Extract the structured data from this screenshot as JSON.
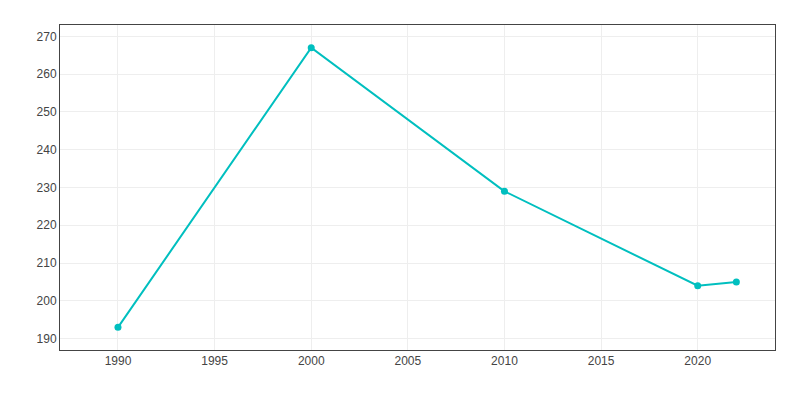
{
  "chart_data": {
    "type": "line",
    "x": [
      1990,
      2000,
      2010,
      2020,
      2022
    ],
    "values": [
      193,
      267,
      229,
      204,
      205
    ],
    "color": "#00BFBF",
    "marker": "circle",
    "line_style": "solid",
    "xlim": [
      1987,
      2024
    ],
    "xticks": [
      1990,
      1995,
      2000,
      2005,
      2010,
      2015,
      2020
    ],
    "ylim": [
      187,
      273
    ],
    "yticks": [
      190,
      200,
      210,
      220,
      230,
      240,
      250,
      260,
      270
    ],
    "grid": true
  }
}
